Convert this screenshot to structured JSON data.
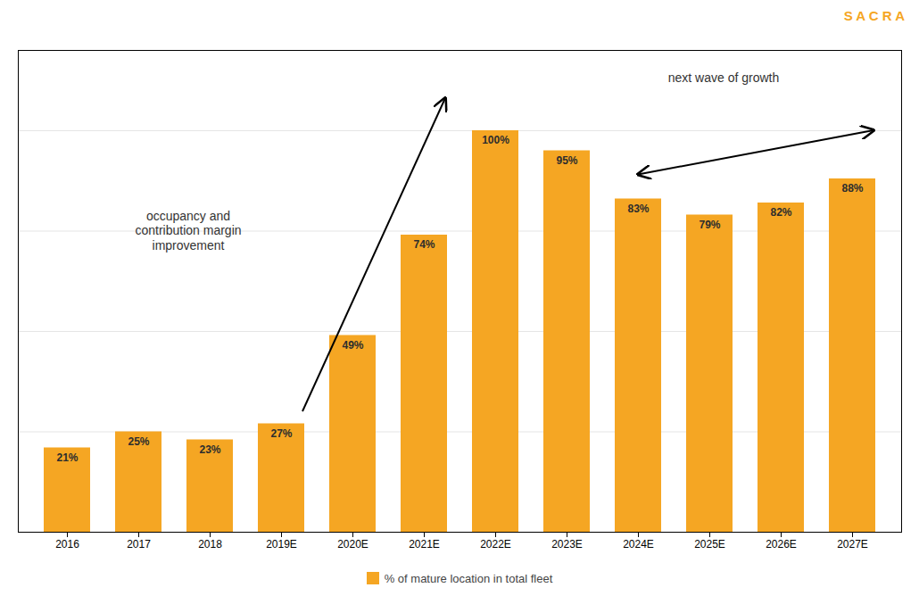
{
  "chart_data": {
    "type": "bar",
    "categories": [
      "2016",
      "2017",
      "2018",
      "2019E",
      "2020E",
      "2021E",
      "2022E",
      "2023E",
      "2024E",
      "2025E",
      "2026E",
      "2027E"
    ],
    "series": [
      {
        "name": "% of mature location in total fleet",
        "color": "#F5A623",
        "values": [
          21,
          25,
          23,
          27,
          49,
          74,
          100,
          95,
          83,
          79,
          82,
          88
        ],
        "value_labels": [
          "21%",
          "25%",
          "23%",
          "27%",
          "49%",
          "74%",
          "100%",
          "95%",
          "83%",
          "79%",
          "82%",
          "88%"
        ]
      }
    ],
    "ylim": [
      0,
      120
    ],
    "yticks": [
      25,
      50,
      75,
      100
    ],
    "grid": true,
    "tick_labels": "x",
    "data_labels": true,
    "legend": "bottom",
    "annotations": [
      "occupancy and\ncontribution margin\nimprovement",
      "next wave of growth",
      "S A C R A"
    ]
  }
}
